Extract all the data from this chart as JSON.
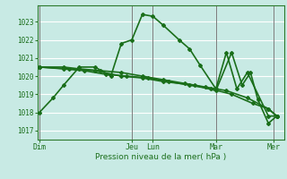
{
  "xlabel": "Pression niveau de la mer( hPa )",
  "bg_color": "#c8eae4",
  "grid_color": "#ffffff",
  "line_color": "#1a6e1a",
  "ylim": [
    1016.5,
    1023.9
  ],
  "xlim": [
    0,
    23.5
  ],
  "xtick_labels": [
    "Dim",
    "Jeu",
    "Lun",
    "Mar",
    "Mer"
  ],
  "xtick_positions": [
    0.2,
    9.0,
    11.0,
    17.0,
    22.5
  ],
  "ytick_values": [
    1017,
    1018,
    1019,
    1020,
    1021,
    1022,
    1023
  ],
  "lines": [
    {
      "x": [
        0.2,
        1.5,
        2.5,
        4.0,
        5.5,
        7.0,
        8.0,
        9.0,
        10.0,
        11.0,
        12.0,
        13.5,
        14.5,
        15.5,
        17.0,
        18.0,
        19.0,
        20.0,
        22.0,
        22.8
      ],
      "y": [
        1018.0,
        1018.8,
        1019.5,
        1020.5,
        1020.5,
        1020.0,
        1021.8,
        1022.0,
        1023.4,
        1023.3,
        1022.8,
        1022.0,
        1021.5,
        1020.6,
        1019.3,
        1021.3,
        1019.3,
        1020.2,
        1017.8,
        1017.8
      ],
      "lw": 1.2,
      "marker": "D",
      "ms": 2.0
    },
    {
      "x": [
        0.2,
        2.5,
        4.0,
        6.0,
        8.0,
        10.0,
        12.0,
        14.0,
        16.0,
        18.0,
        20.0,
        22.0,
        22.8
      ],
      "y": [
        1020.5,
        1020.5,
        1020.4,
        1020.3,
        1020.2,
        1020.0,
        1019.8,
        1019.6,
        1019.4,
        1019.2,
        1018.8,
        1018.2,
        1017.8
      ],
      "lw": 1.2,
      "marker": "D",
      "ms": 2.0
    },
    {
      "x": [
        0.2,
        2.5,
        4.5,
        6.5,
        8.5,
        10.5,
        12.5,
        14.5,
        16.5,
        18.5,
        20.5,
        22.0,
        22.8
      ],
      "y": [
        1020.5,
        1020.4,
        1020.3,
        1020.1,
        1020.0,
        1019.9,
        1019.7,
        1019.5,
        1019.3,
        1019.0,
        1018.5,
        1018.2,
        1017.8
      ],
      "lw": 1.2,
      "marker": "D",
      "ms": 2.0
    },
    {
      "x": [
        0.2,
        3.0,
        5.5,
        8.0,
        10.0,
        12.0,
        15.0,
        17.0,
        18.5,
        19.5,
        20.3,
        21.0,
        22.0,
        22.8
      ],
      "y": [
        1020.5,
        1020.4,
        1020.3,
        1020.0,
        1019.9,
        1019.7,
        1019.5,
        1019.2,
        1021.3,
        1019.5,
        1020.2,
        1018.7,
        1017.4,
        1017.8
      ],
      "lw": 1.2,
      "marker": "D",
      "ms": 2.0
    }
  ],
  "vlines": [
    0.2,
    9.0,
    11.0,
    17.0,
    22.5
  ],
  "vline_color": "#666666"
}
